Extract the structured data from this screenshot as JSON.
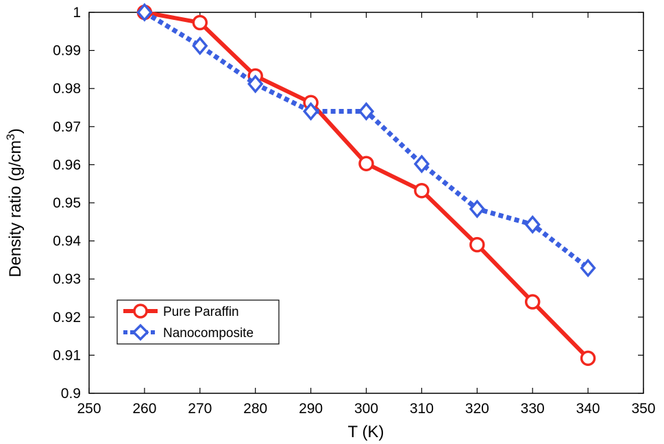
{
  "chart_data": {
    "type": "line",
    "xlabel": "T (K)",
    "ylabel": "Density ratio (g/cm",
    "ylabel_superscript": "3",
    "ylabel_close": ")",
    "xlim": [
      250,
      350
    ],
    "ylim": [
      0.9,
      1.0
    ],
    "x_ticks": [
      "250",
      "260",
      "270",
      "280",
      "290",
      "300",
      "310",
      "320",
      "330",
      "340",
      "350"
    ],
    "y_ticks": [
      "0.9",
      "0.91",
      "0.92",
      "0.93",
      "0.94",
      "0.95",
      "0.96",
      "0.97",
      "0.98",
      "0.99",
      "1"
    ],
    "grid": false,
    "legend_position": "bottom-left",
    "x": [
      260,
      270,
      280,
      290,
      300,
      310,
      320,
      330,
      340
    ],
    "series": [
      {
        "name": "Pure Paraffin",
        "color": "#f2281e",
        "line_style": "solid",
        "marker": "circle",
        "values": [
          1.0,
          0.9973,
          0.9833,
          0.9763,
          0.9603,
          0.9532,
          0.939,
          0.924,
          0.9092
        ]
      },
      {
        "name": "Nanocomposite",
        "color": "#3b5fe0",
        "line_style": "dotted",
        "marker": "diamond",
        "values": [
          1.0,
          0.9912,
          0.9812,
          0.974,
          0.974,
          0.9602,
          0.9484,
          0.9443,
          0.9329
        ]
      }
    ]
  }
}
